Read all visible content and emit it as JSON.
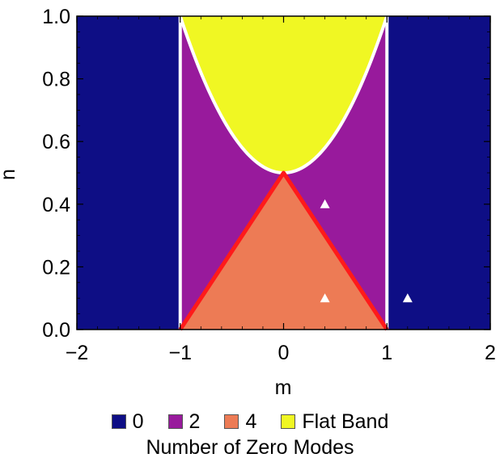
{
  "chart_data": {
    "type": "region-plot",
    "xlabel": "m",
    "ylabel": "n",
    "xlim": [
      -2,
      2
    ],
    "ylim": [
      0,
      1
    ],
    "x_ticks": [
      -2,
      -1,
      0,
      1,
      2
    ],
    "x_tick_labels": [
      "−2",
      "−1",
      "0",
      "1",
      "2"
    ],
    "y_ticks": [
      0.0,
      0.2,
      0.4,
      0.6,
      0.8,
      1.0
    ],
    "y_tick_labels": [
      "0.0",
      "0.2",
      "0.4",
      "0.6",
      "0.8",
      "1.0"
    ],
    "regions": [
      {
        "name": "0",
        "color": "#0e0e85",
        "description": "|m| > 1"
      },
      {
        "name": "2",
        "color": "#981a9c",
        "description": "|m| < 1 outside other regions"
      },
      {
        "name": "4",
        "color": "#ed7b55",
        "description": "triangle, vertices (-1,0),(1,0),(0,0.5)"
      },
      {
        "name": "Flat Band",
        "color": "#f0f723",
        "description": "n > (1 + m^2)/2, |m| <= 1"
      }
    ],
    "boundaries": {
      "triangle_color": "#ff1a1a",
      "white_boundaries": [
        "m = -1",
        "m = 1",
        "n = (1 + m^2)/2"
      ]
    },
    "markers": [
      {
        "x": 0.4,
        "y": 0.4
      },
      {
        "x": 0.4,
        "y": 0.1
      },
      {
        "x": 1.2,
        "y": 0.1
      }
    ],
    "legend": {
      "placement": "bottom",
      "items": [
        "0",
        "2",
        "4",
        "Flat Band"
      ],
      "title": "Number of Zero Modes"
    }
  }
}
